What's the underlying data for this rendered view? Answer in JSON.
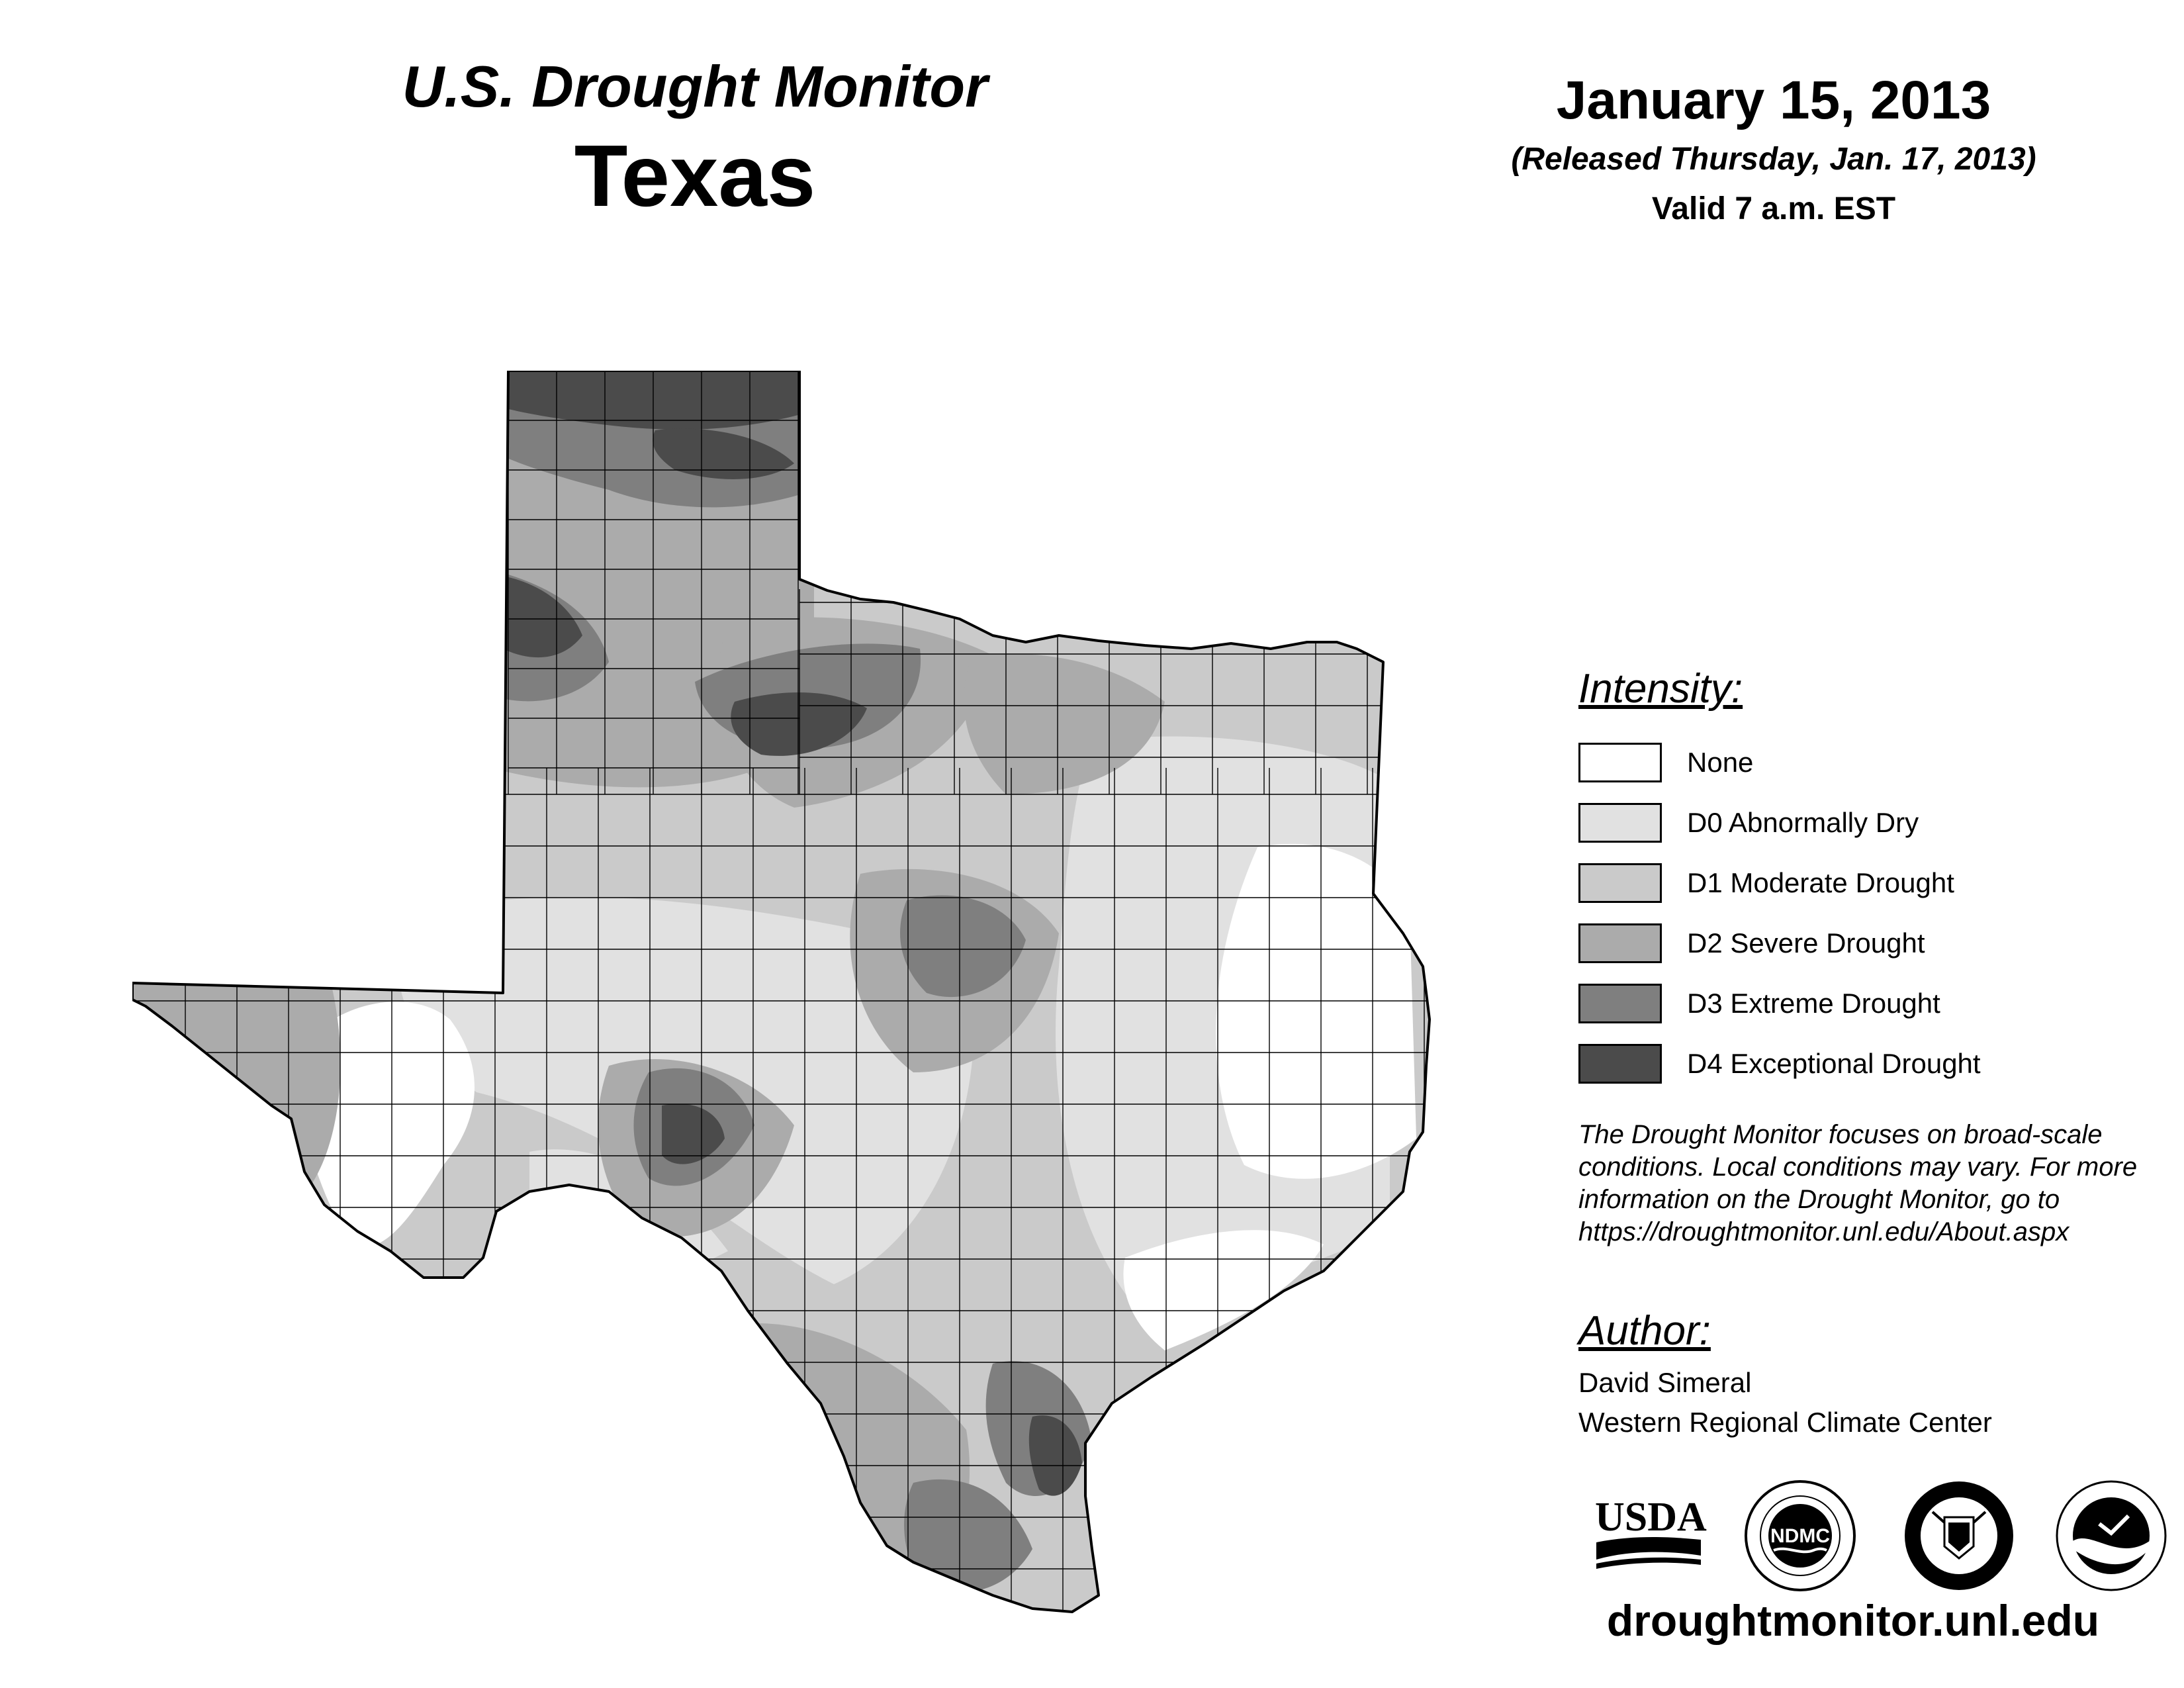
{
  "header": {
    "title": "U.S. Drought Monitor",
    "state": "Texas",
    "date": "January 15, 2013",
    "released": "(Released Thursday, Jan. 17, 2013)",
    "valid": "Valid 7 a.m. EST"
  },
  "legend": {
    "title": "Intensity:",
    "items": [
      {
        "label": "None",
        "color": "#ffffff"
      },
      {
        "label": "D0 Abnormally Dry",
        "color": "#e1e1e1"
      },
      {
        "label": "D1 Moderate Drought",
        "color": "#cacaca"
      },
      {
        "label": "D2 Severe Drought",
        "color": "#ababab"
      },
      {
        "label": "D3 Extreme Drought",
        "color": "#7f7f7f"
      },
      {
        "label": "D4 Exceptional Drought",
        "color": "#4b4b4b"
      }
    ]
  },
  "note": "The Drought Monitor focuses on broad-scale conditions. Local conditions may vary. For more information on the Drought Monitor, go to https://droughtmonitor.unl.edu/About.aspx",
  "author": {
    "title": "Author:",
    "name": "David Simeral",
    "org": "Western Regional Climate Center"
  },
  "logos": {
    "usda": "USDA",
    "ndmc": "NDMC"
  },
  "website": "droughtmonitor.unl.edu"
}
